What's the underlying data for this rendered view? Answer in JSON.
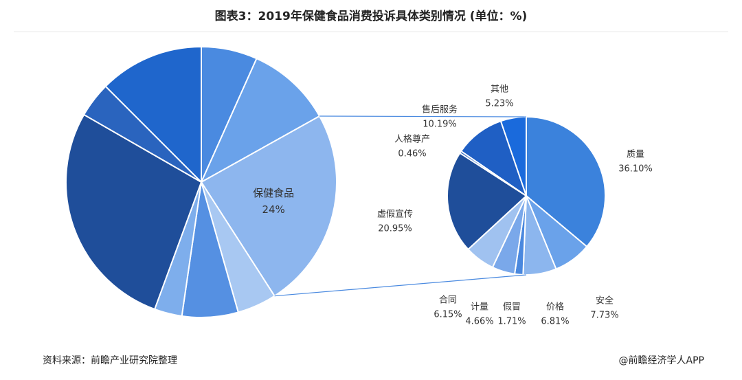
{
  "title": "图表3：2019年保健食品消费投诉具体类别情况 (单位：%)",
  "source": "资料来源：前瞻产业研究院整理",
  "credit": "@前瞻经济学人APP",
  "chart_data": [
    {
      "type": "pie",
      "categories": [
        null,
        null,
        "保健食品",
        null,
        null,
        null,
        null,
        null,
        null
      ],
      "values": [
        6.7,
        10.2,
        24,
        4.7,
        6.7,
        3.3,
        27.7,
        4.2,
        12.5
      ],
      "value_labels": [
        null,
        null,
        "24%",
        null,
        null,
        null,
        null,
        null,
        null
      ],
      "colors": [
        "#4a8ae0",
        "#6aa2ea",
        "#8db6ee",
        "#a8c8f2",
        "#5590e2",
        "#7eaeec",
        "#1f4e9a",
        "#2a64be",
        "#1f66cc"
      ]
    },
    {
      "type": "pie",
      "categories": [
        "质量",
        "安全",
        "价格",
        "假冒",
        "计量",
        "合同",
        "虚假宣传",
        "人格尊产",
        "售后服务",
        "其他"
      ],
      "values": [
        36.1,
        7.73,
        6.81,
        1.71,
        4.66,
        6.15,
        20.95,
        0.46,
        10.19,
        5.23
      ],
      "value_labels": [
        "36.10%",
        "7.73%",
        "6.81%",
        "1.71%",
        "4.66%",
        "6.15%",
        "20.95%",
        "0.46%",
        "10.19%",
        "5.23%"
      ],
      "colors": [
        "#3b82dc",
        "#6aa2ea",
        "#8cb6ee",
        "#4a88de",
        "#7aa8ea",
        "#a0c2f0",
        "#1f4e9a",
        "#2a64be",
        "#1f5fc4",
        "#1a6adc"
      ]
    }
  ]
}
